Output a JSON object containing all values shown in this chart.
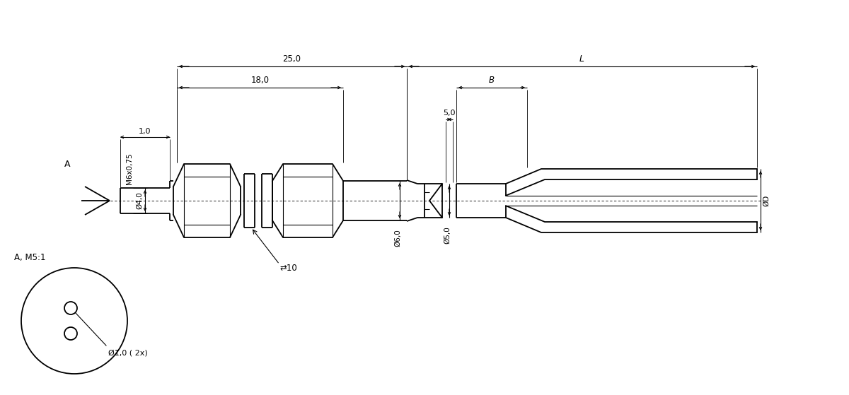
{
  "bg_color": "#ffffff",
  "line_color": "#000000",
  "lw": 1.3,
  "tlw": 0.8,
  "annotations": {
    "dim_25": "25,0",
    "dim_18": "18,0",
    "dim_L": "L",
    "dim_B": "B",
    "dim_1": "1,0",
    "dim_5": "5,0",
    "dim_m6": "M6x0,75",
    "dim_4": "Ø4,0",
    "dim_6": "Ø6,0",
    "dim_5d": "Ø5,0",
    "dim_D": "ØD",
    "dim_10": "⇄10",
    "dim_phi1": "Ø1,0 ( 2x)",
    "label_A": "A",
    "label_AM": "A, M5:1"
  }
}
